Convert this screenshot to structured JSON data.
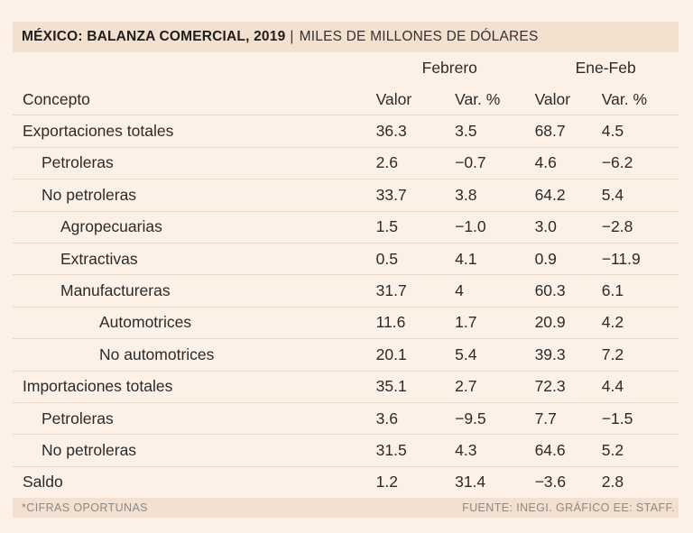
{
  "chart_data": {
    "type": "table",
    "title": "MÉXICO: BALANZA COMERCIAL, 2019",
    "separator": "|",
    "subtitle": "MILES DE MILLONES DE DÓLARES",
    "column_groups": [
      "Febrero",
      "Ene-Feb"
    ],
    "columns": [
      "Concepto",
      "Valor",
      "Var. %",
      "Valor",
      "Var. %"
    ],
    "rows": [
      {
        "concepto": "Exportaciones totales",
        "level": 0,
        "feb_valor": "36.3",
        "feb_var": "3.5",
        "ene_valor": "68.7",
        "ene_var": "4.5"
      },
      {
        "concepto": "Petroleras",
        "level": 1,
        "feb_valor": "2.6",
        "feb_var": "-0.7",
        "ene_valor": "4.6",
        "ene_var": "-6.2"
      },
      {
        "concepto": "No petroleras",
        "level": 1,
        "feb_valor": "33.7",
        "feb_var": "3.8",
        "ene_valor": "64.2",
        "ene_var": "5.4"
      },
      {
        "concepto": "Agropecuarias",
        "level": 2,
        "feb_valor": "1.5",
        "feb_var": "-1.0",
        "ene_valor": "3.0",
        "ene_var": "-2.8"
      },
      {
        "concepto": "Extractivas",
        "level": 2,
        "feb_valor": "0.5",
        "feb_var": "4.1",
        "ene_valor": "0.9",
        "ene_var": "-11.9"
      },
      {
        "concepto": "Manufactureras",
        "level": 2,
        "feb_valor": "31.7",
        "feb_var": "4",
        "ene_valor": "60.3",
        "ene_var": "6.1"
      },
      {
        "concepto": "Automotrices",
        "level": 3,
        "feb_valor": "11.6",
        "feb_var": "1.7",
        "ene_valor": "20.9",
        "ene_var": "4.2"
      },
      {
        "concepto": "No automotrices",
        "level": 3,
        "feb_valor": "20.1",
        "feb_var": "5.4",
        "ene_valor": "39.3",
        "ene_var": "7.2"
      },
      {
        "concepto": "Importaciones totales",
        "level": 0,
        "feb_valor": "35.1",
        "feb_var": "2.7",
        "ene_valor": "72.3",
        "ene_var": "4.4"
      },
      {
        "concepto": "Petroleras",
        "level": 1,
        "feb_valor": "3.6",
        "feb_var": "-9.5",
        "ene_valor": "7.7",
        "ene_var": "-1.5"
      },
      {
        "concepto": "No petroleras",
        "level": 1,
        "feb_valor": "31.5",
        "feb_var": "4.3",
        "ene_valor": "64.6",
        "ene_var": "5.2"
      },
      {
        "concepto": "Saldo",
        "level": 0,
        "feb_valor": "1.2",
        "feb_var": "31.4",
        "ene_valor": "-3.6",
        "ene_var": "2.8"
      }
    ],
    "footnote": "*CIFRAS OPORTUNAS",
    "source": "FUENTE: INEGI. GRÁFICO EE: STAFF."
  }
}
